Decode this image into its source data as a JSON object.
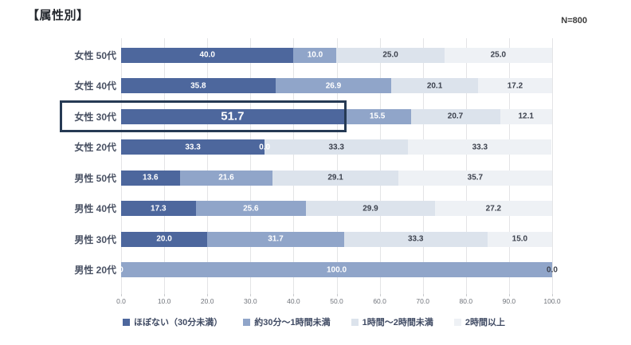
{
  "header": {
    "title": "【属性別】",
    "n_label": "N=800"
  },
  "chart_data": {
    "type": "bar",
    "subtype": "horizontal-stacked",
    "title": "【属性別】",
    "n": "N=800",
    "xlabel": "",
    "ylabel": "",
    "xlim": [
      0,
      100
    ],
    "grid": true,
    "legend_position": "bottom",
    "x_ticks": [
      "0.0",
      "10.0",
      "20.0",
      "30.0",
      "40.0",
      "50.0",
      "60.0",
      "70.0",
      "80.0",
      "90.0",
      "100.0"
    ],
    "series": [
      {
        "name": "ほぼない（30分未満）",
        "color": "#4d679d",
        "label_color": "#ffffff"
      },
      {
        "name": "約30分〜1時間未満",
        "color": "#90a5c9",
        "label_color": "#ffffff"
      },
      {
        "name": "1時間〜2時間未満",
        "color": "#dce3ec",
        "label_color": "#3c414d"
      },
      {
        "name": "2時間以上",
        "color": "#eef1f5",
        "label_color": "#3c414d"
      }
    ],
    "rows": [
      {
        "category": "女性 50代",
        "values": [
          40.0,
          10.0,
          25.0,
          25.0
        ],
        "labels": [
          "40.0",
          "10.0",
          "25.0",
          "25.0"
        ]
      },
      {
        "category": "女性 40代",
        "values": [
          35.8,
          26.9,
          20.1,
          17.2
        ],
        "labels": [
          "35.8",
          "26.9",
          "20.1",
          "17.2"
        ]
      },
      {
        "category": "女性 30代",
        "values": [
          51.7,
          15.5,
          20.7,
          12.1
        ],
        "labels": [
          "51.7",
          "15.5",
          "20.7",
          "12.1"
        ],
        "highlight": true
      },
      {
        "category": "女性 20代",
        "values": [
          33.3,
          0.0,
          33.3,
          33.3
        ],
        "labels": [
          "33.3",
          "0.0",
          "33.3",
          "33.3"
        ]
      },
      {
        "category": "男性 50代",
        "values": [
          13.6,
          21.6,
          29.1,
          35.7
        ],
        "labels": [
          "13.6",
          "21.6",
          "29.1",
          "35.7"
        ]
      },
      {
        "category": "男性 40代",
        "values": [
          17.3,
          25.6,
          29.9,
          27.2
        ],
        "labels": [
          "17.3",
          "25.6",
          "29.9",
          "27.2"
        ]
      },
      {
        "category": "男性 30代",
        "values": [
          20.0,
          31.7,
          33.3,
          15.0
        ],
        "labels": [
          "20.0",
          "31.7",
          "33.3",
          "15.0"
        ]
      },
      {
        "category": "男性 20代",
        "values": [
          0.0,
          100.0,
          0.0,
          0.0
        ],
        "labels": [
          "0",
          "100.0",
          "0.0",
          ""
        ]
      }
    ]
  },
  "highlight": {
    "row_index": 2,
    "border_color": "#263a54"
  }
}
